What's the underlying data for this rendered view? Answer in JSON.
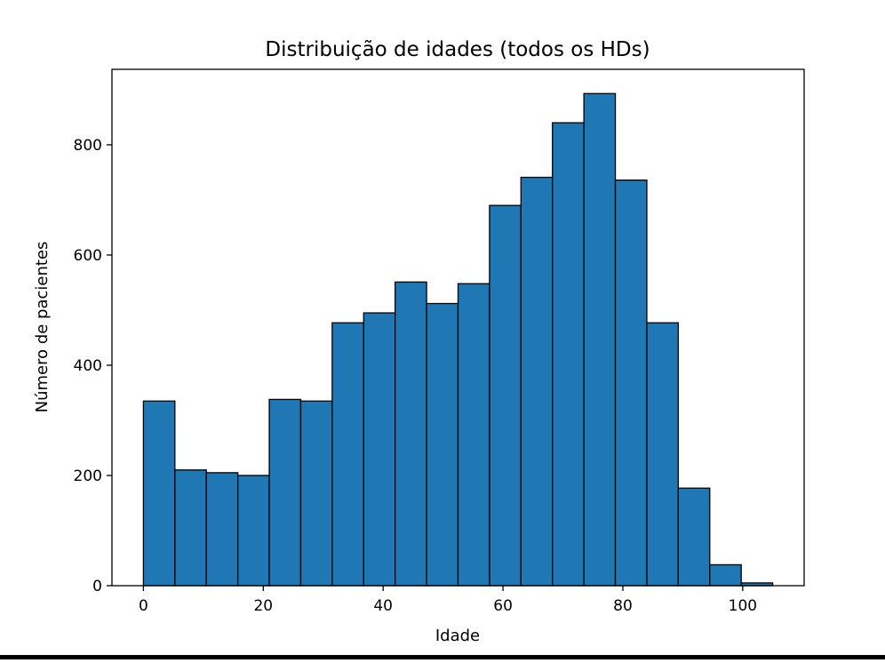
{
  "chart_data": {
    "type": "bar",
    "title": "Distribuição de idades (todos os HDs)",
    "xlabel": "Idade",
    "ylabel": "Número de pacientes",
    "bin_edges": [
      0,
      5.25,
      10.5,
      15.75,
      21,
      26.25,
      31.5,
      36.75,
      42,
      47.25,
      52.5,
      57.75,
      63,
      68.25,
      73.5,
      78.75,
      84,
      89.25,
      94.5,
      99.75,
      105
    ],
    "values": [
      335,
      210,
      205,
      200,
      338,
      335,
      477,
      495,
      551,
      512,
      548,
      690,
      741,
      840,
      893,
      736,
      477,
      177,
      38,
      5
    ],
    "xlim": [
      -5.25,
      110.25
    ],
    "ylim": [
      0,
      937
    ],
    "x_ticks": [
      0,
      20,
      40,
      60,
      80,
      100
    ],
    "y_ticks": [
      0,
      200,
      400,
      600,
      800
    ],
    "bar_color": "#1f77b4",
    "edge_color": "#000000",
    "grid": false,
    "legend": "none"
  }
}
